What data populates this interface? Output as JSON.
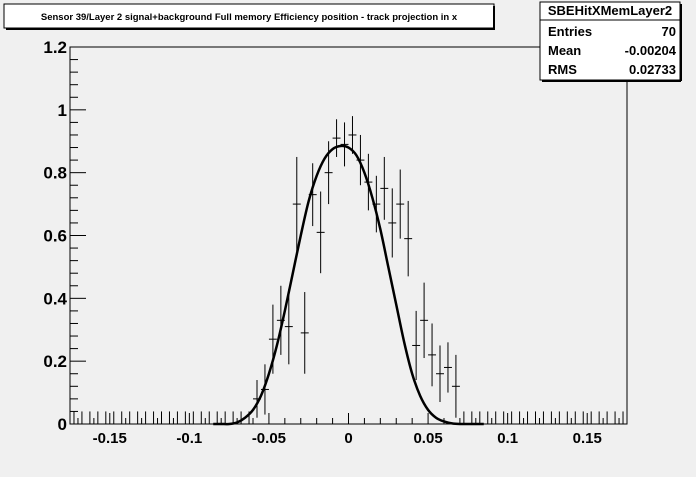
{
  "chart_data": {
    "type": "scatter",
    "title": "Sensor 39/Layer 2 signal+background Full memory Efficiency position - track projection in x",
    "xlabel": "",
    "ylabel": "",
    "xlim": [
      -0.175,
      0.175
    ],
    "ylim": [
      0,
      1.2
    ],
    "x_ticks": [
      -0.15,
      -0.1,
      -0.05,
      0,
      0.05,
      0.1,
      0.15
    ],
    "x_tick_labels": [
      "-0.15",
      "-0.1",
      "-0.05",
      "0",
      "0.05",
      "0.1",
      "0.15"
    ],
    "y_ticks": [
      0,
      0.2,
      0.4,
      0.6,
      0.8,
      1.0,
      1.2
    ],
    "y_tick_labels": [
      "0",
      "0.2",
      "0.4",
      "0.6",
      "0.8",
      "1",
      "1.2"
    ],
    "grid": false,
    "legend": "none",
    "stats_box": {
      "name": "SBEHitXMemLayer2",
      "rows": [
        {
          "label": "Entries",
          "value": "70"
        },
        {
          "label": "Mean",
          "value": "-0.00204"
        },
        {
          "label": "RMS",
          "value": "0.02733"
        }
      ]
    },
    "bin_width": 0.005,
    "series": [
      {
        "kind": "errorbars",
        "points": [
          {
            "x": -0.1725,
            "y": 0.0,
            "err": 0.04
          },
          {
            "x": -0.1675,
            "y": 0.0,
            "err": 0.04
          },
          {
            "x": -0.1625,
            "y": 0.0,
            "err": 0.04
          },
          {
            "x": -0.1575,
            "y": 0.0,
            "err": 0.04
          },
          {
            "x": -0.1525,
            "y": 0.0,
            "err": 0.04
          },
          {
            "x": -0.1475,
            "y": 0.0,
            "err": 0.04
          },
          {
            "x": -0.1425,
            "y": 0.0,
            "err": 0.04
          },
          {
            "x": -0.1375,
            "y": 0.0,
            "err": 0.04
          },
          {
            "x": -0.1325,
            "y": 0.0,
            "err": 0.04
          },
          {
            "x": -0.1275,
            "y": 0.0,
            "err": 0.04
          },
          {
            "x": -0.1225,
            "y": 0.0,
            "err": 0.04
          },
          {
            "x": -0.1175,
            "y": 0.0,
            "err": 0.04
          },
          {
            "x": -0.1125,
            "y": 0.0,
            "err": 0.04
          },
          {
            "x": -0.1075,
            "y": 0.0,
            "err": 0.04
          },
          {
            "x": -0.1025,
            "y": 0.0,
            "err": 0.04
          },
          {
            "x": -0.0975,
            "y": 0.0,
            "err": 0.04
          },
          {
            "x": -0.0925,
            "y": 0.0,
            "err": 0.04
          },
          {
            "x": -0.0875,
            "y": 0.0,
            "err": 0.04
          },
          {
            "x": -0.0825,
            "y": 0.0,
            "err": 0.04
          },
          {
            "x": -0.0775,
            "y": 0.0,
            "err": 0.04
          },
          {
            "x": -0.0725,
            "y": 0.0,
            "err": 0.04
          },
          {
            "x": -0.0675,
            "y": 0.0,
            "err": 0.04
          },
          {
            "x": -0.0625,
            "y": 0.0,
            "err": 0.04
          },
          {
            "x": -0.0575,
            "y": 0.08,
            "err": 0.06
          },
          {
            "x": -0.0525,
            "y": 0.11,
            "err": 0.08
          },
          {
            "x": -0.0475,
            "y": 0.27,
            "err": 0.11
          },
          {
            "x": -0.0425,
            "y": 0.33,
            "err": 0.11
          },
          {
            "x": -0.0375,
            "y": 0.31,
            "err": 0.12
          },
          {
            "x": -0.0325,
            "y": 0.7,
            "err": 0.15
          },
          {
            "x": -0.0275,
            "y": 0.29,
            "err": 0.13
          },
          {
            "x": -0.0225,
            "y": 0.73,
            "err": 0.1
          },
          {
            "x": -0.0175,
            "y": 0.61,
            "err": 0.13
          },
          {
            "x": -0.0125,
            "y": 0.8,
            "err": 0.1
          },
          {
            "x": -0.0075,
            "y": 0.91,
            "err": 0.06
          },
          {
            "x": -0.0025,
            "y": 0.89,
            "err": 0.07
          },
          {
            "x": 0.0025,
            "y": 0.92,
            "err": 0.06
          },
          {
            "x": 0.0075,
            "y": 0.84,
            "err": 0.08
          },
          {
            "x": 0.0125,
            "y": 0.77,
            "err": 0.09
          },
          {
            "x": 0.0175,
            "y": 0.7,
            "err": 0.09
          },
          {
            "x": 0.0225,
            "y": 0.75,
            "err": 0.1
          },
          {
            "x": 0.0275,
            "y": 0.64,
            "err": 0.11
          },
          {
            "x": 0.0325,
            "y": 0.7,
            "err": 0.11
          },
          {
            "x": 0.0375,
            "y": 0.59,
            "err": 0.12
          },
          {
            "x": 0.0425,
            "y": 0.25,
            "err": 0.11
          },
          {
            "x": 0.0475,
            "y": 0.33,
            "err": 0.12
          },
          {
            "x": 0.0525,
            "y": 0.22,
            "err": 0.1
          },
          {
            "x": 0.0575,
            "y": 0.16,
            "err": 0.09
          },
          {
            "x": 0.0625,
            "y": 0.18,
            "err": 0.08
          },
          {
            "x": 0.0675,
            "y": 0.12,
            "err": 0.1
          },
          {
            "x": 0.0725,
            "y": 0.0,
            "err": 0.04
          },
          {
            "x": 0.0775,
            "y": 0.0,
            "err": 0.04
          },
          {
            "x": 0.0825,
            "y": 0.0,
            "err": 0.04
          },
          {
            "x": 0.0875,
            "y": 0.0,
            "err": 0.04
          },
          {
            "x": 0.0925,
            "y": 0.0,
            "err": 0.04
          },
          {
            "x": 0.0975,
            "y": 0.0,
            "err": 0.04
          },
          {
            "x": 0.1025,
            "y": 0.0,
            "err": 0.04
          },
          {
            "x": 0.1075,
            "y": 0.0,
            "err": 0.04
          },
          {
            "x": 0.1125,
            "y": 0.0,
            "err": 0.04
          },
          {
            "x": 0.1175,
            "y": 0.0,
            "err": 0.04
          },
          {
            "x": 0.1225,
            "y": 0.0,
            "err": 0.04
          },
          {
            "x": 0.1275,
            "y": 0.0,
            "err": 0.04
          },
          {
            "x": 0.1325,
            "y": 0.0,
            "err": 0.04
          },
          {
            "x": 0.1375,
            "y": 0.0,
            "err": 0.04
          },
          {
            "x": 0.1425,
            "y": 0.0,
            "err": 0.04
          },
          {
            "x": 0.1475,
            "y": 0.0,
            "err": 0.04
          },
          {
            "x": 0.1525,
            "y": 0.0,
            "err": 0.04
          },
          {
            "x": 0.1575,
            "y": 0.0,
            "err": 0.04
          },
          {
            "x": 0.1625,
            "y": 0.0,
            "err": 0.04
          },
          {
            "x": 0.1675,
            "y": 0.0,
            "err": 0.04
          },
          {
            "x": 0.1725,
            "y": 0.0,
            "err": 0.04
          }
        ]
      },
      {
        "kind": "line",
        "x": [
          -0.085,
          -0.08,
          -0.075,
          -0.07,
          -0.065,
          -0.06,
          -0.055,
          -0.05,
          -0.045,
          -0.04,
          -0.035,
          -0.03,
          -0.025,
          -0.02,
          -0.015,
          -0.01,
          -0.005,
          0.0,
          0.005,
          0.01,
          0.015,
          0.02,
          0.025,
          0.03,
          0.035,
          0.04,
          0.045,
          0.05,
          0.055,
          0.06,
          0.065,
          0.07,
          0.075,
          0.08,
          0.085
        ],
        "y": [
          0.0,
          0.0,
          0.0,
          0.005,
          0.02,
          0.045,
          0.09,
          0.16,
          0.25,
          0.36,
          0.48,
          0.6,
          0.71,
          0.79,
          0.845,
          0.875,
          0.885,
          0.88,
          0.855,
          0.8,
          0.72,
          0.62,
          0.5,
          0.38,
          0.26,
          0.16,
          0.09,
          0.045,
          0.02,
          0.008,
          0.002,
          0.0,
          0.0,
          0.0,
          0.0
        ]
      }
    ]
  }
}
